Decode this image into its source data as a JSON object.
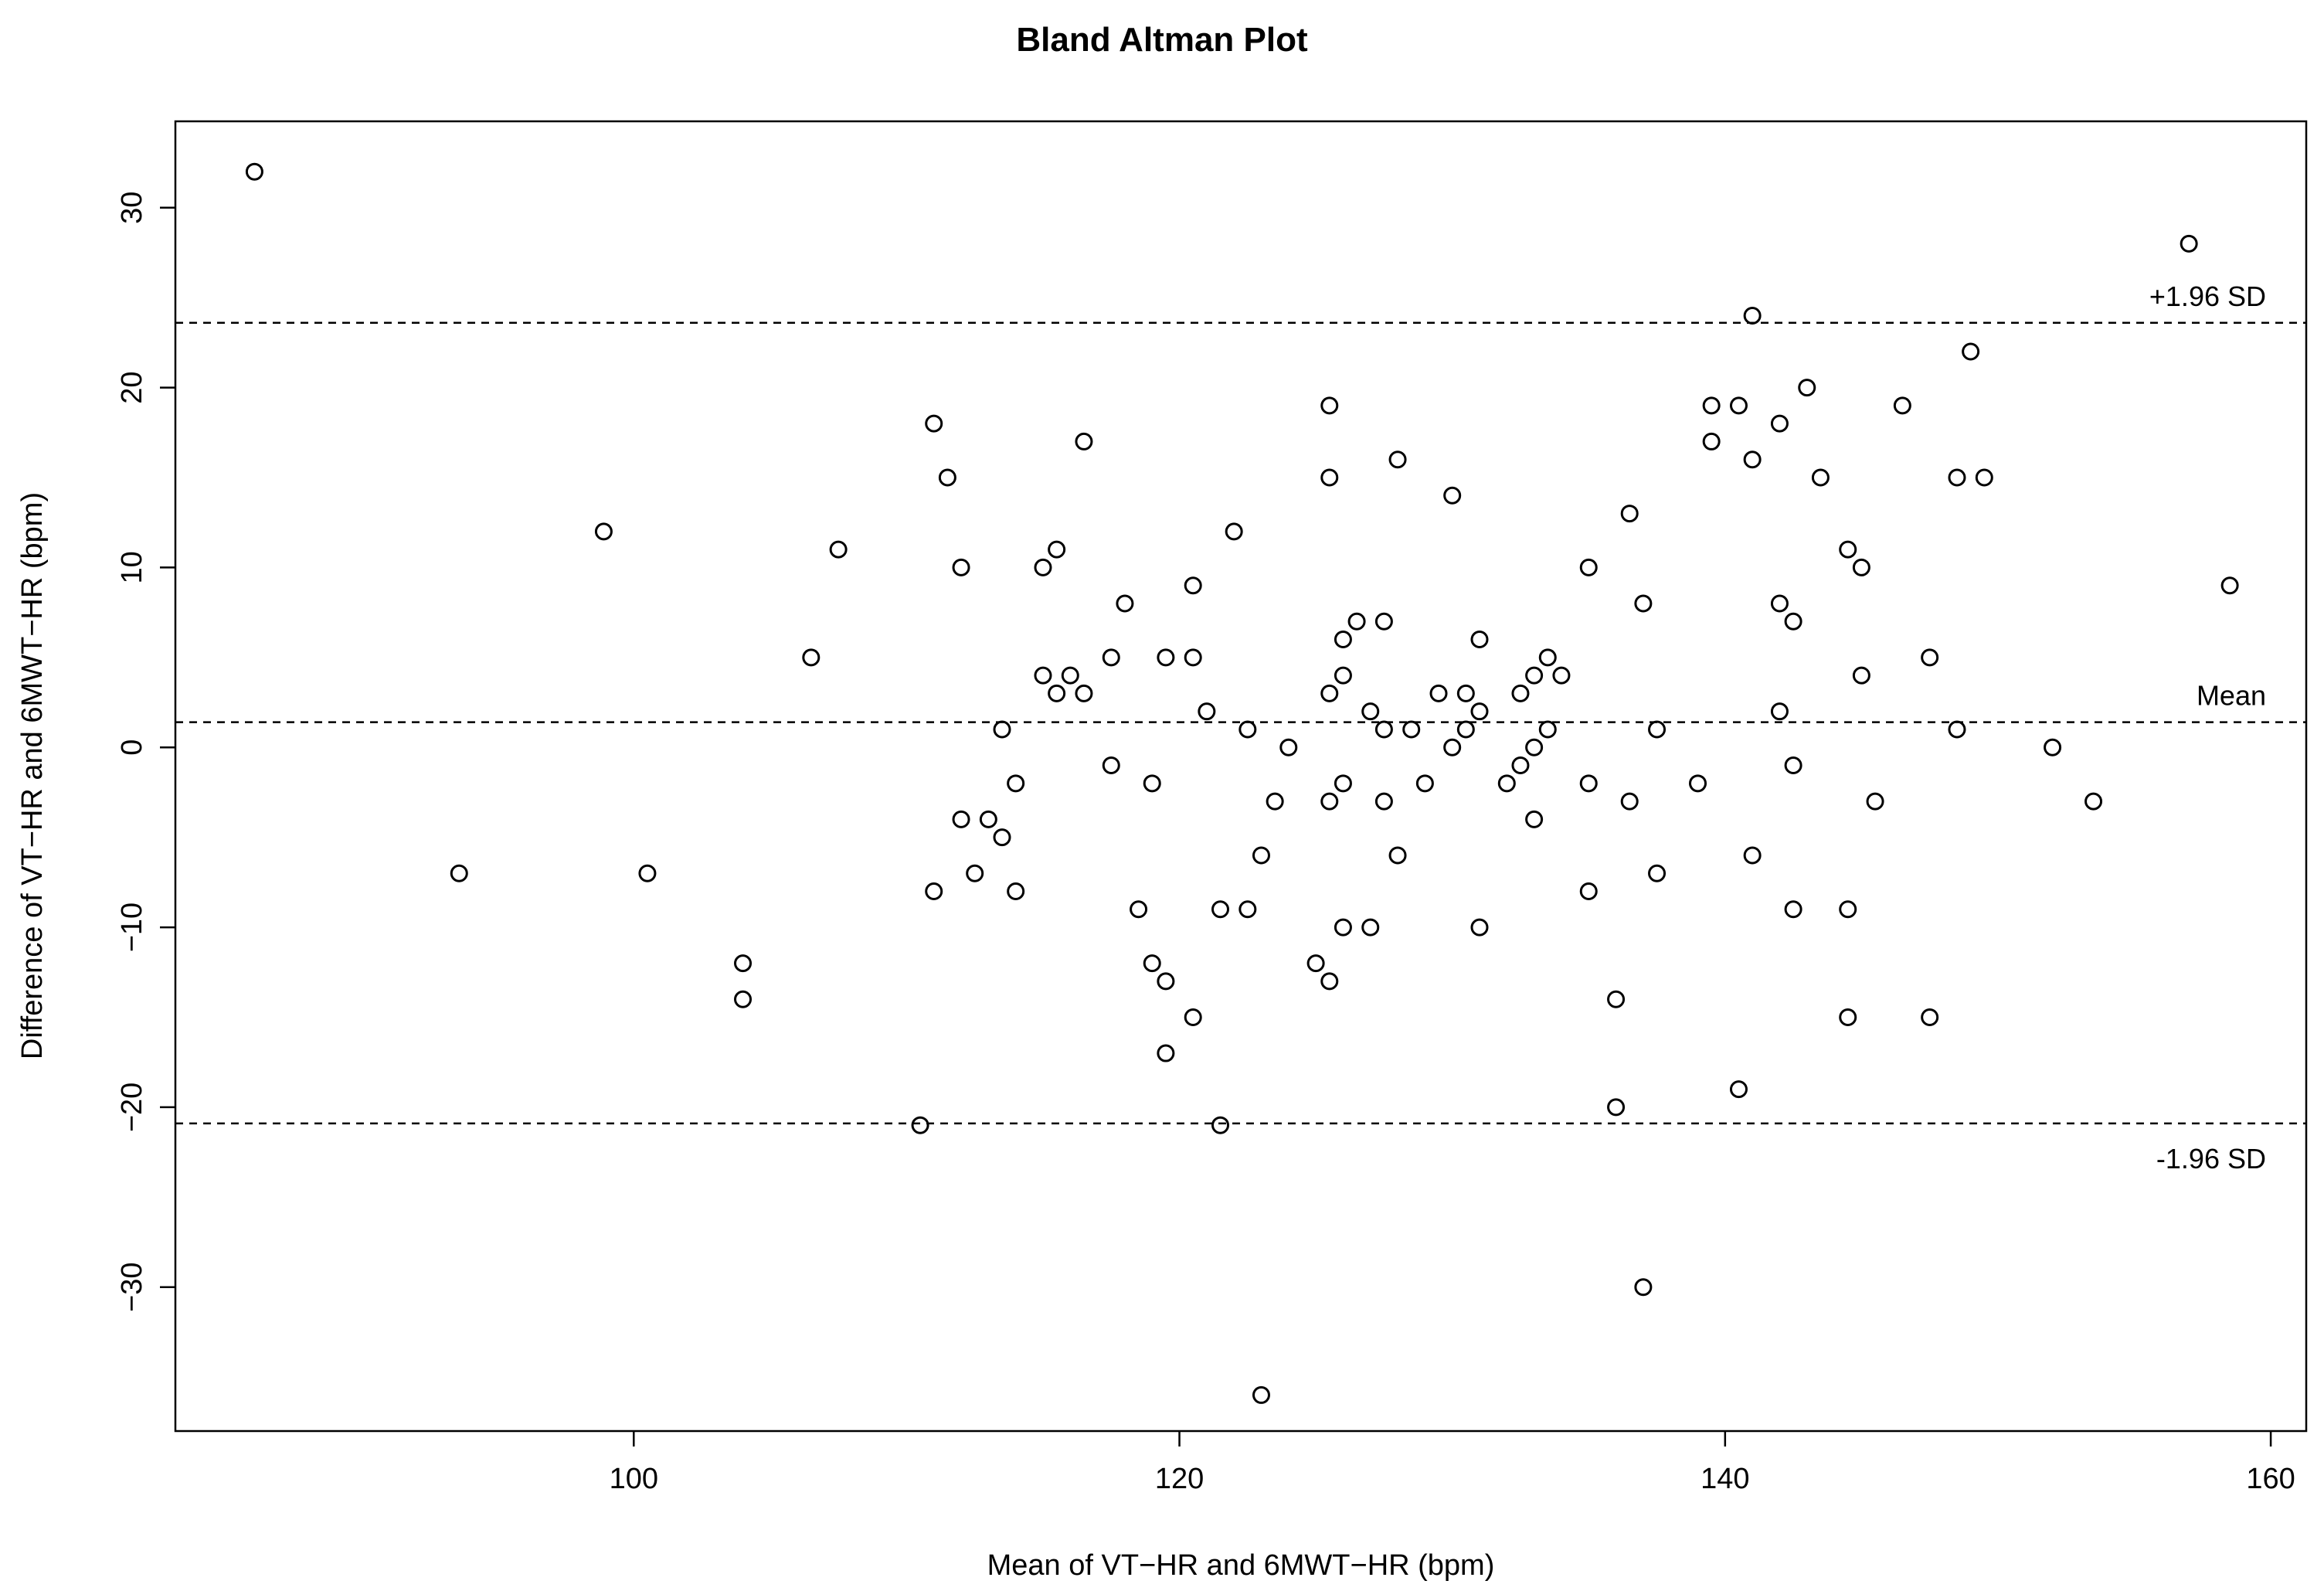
{
  "chart_data": {
    "type": "scatter",
    "title": "Bland Altman Plot",
    "xlabel": "Mean of VT−HR and 6MWT−HR (bpm)",
    "ylabel": "Difference of VT−HR and 6MWT−HR (bpm)",
    "xlim": [
      83.2,
      161.3
    ],
    "ylim": [
      -38.0,
      34.8
    ],
    "x_ticks": [
      100,
      120,
      140,
      160
    ],
    "x_tick_labels": [
      "100",
      "120",
      "140",
      "160"
    ],
    "y_ticks": [
      -30,
      -20,
      -10,
      0,
      10,
      20,
      30
    ],
    "y_tick_labels": [
      "−30",
      "−20",
      "−10",
      "0",
      "10",
      "20",
      "30"
    ],
    "grid": false,
    "legend": "none",
    "point_style": "open-circle",
    "reference_lines": [
      {
        "label": "+1.96 SD",
        "y": 23.6
      },
      {
        "label": "Mean",
        "y": 1.4
      },
      {
        "label": "-1.96 SD",
        "y": -20.9
      }
    ],
    "x": [
      86.1,
      93.6,
      98.9,
      100.5,
      104.0,
      104.0,
      106.5,
      107.5,
      110.5,
      111.0,
      111.0,
      111.5,
      112.0,
      112.0,
      112.5,
      113.0,
      113.5,
      113.5,
      114.0,
      114.0,
      115.0,
      115.0,
      115.5,
      115.5,
      116.0,
      116.5,
      116.5,
      117.5,
      117.5,
      118.0,
      118.5,
      119.0,
      119.0,
      119.5,
      119.5,
      119.5,
      120.5,
      120.5,
      120.5,
      121.0,
      121.5,
      121.5,
      122.0,
      122.5,
      122.5,
      123.0,
      123.0,
      123.5,
      124.0,
      125.0,
      125.5,
      125.5,
      125.5,
      125.5,
      125.5,
      126.0,
      126.0,
      126.0,
      126.0,
      126.5,
      127.0,
      127.0,
      127.5,
      127.5,
      127.5,
      128.0,
      128.0,
      128.5,
      129.0,
      129.5,
      130.0,
      130.0,
      130.5,
      130.5,
      131.0,
      131.0,
      131.0,
      132.0,
      132.5,
      132.5,
      133.0,
      133.0,
      133.0,
      133.5,
      133.5,
      134.0,
      135.0,
      135.0,
      135.0,
      136.0,
      136.0,
      136.5,
      136.5,
      137.0,
      137.0,
      137.5,
      137.5,
      139.0,
      139.5,
      139.5,
      140.5,
      140.5,
      141.0,
      141.0,
      141.0,
      142.0,
      142.0,
      142.0,
      142.5,
      142.5,
      142.5,
      143.0,
      143.5,
      144.5,
      144.5,
      144.5,
      145.0,
      145.0,
      145.5,
      146.5,
      147.5,
      147.5,
      148.5,
      148.5,
      149.0,
      149.5,
      152.0,
      153.5,
      157.0,
      158.5
    ],
    "y": [
      32,
      -7,
      12,
      -7,
      -12,
      -14,
      5,
      11,
      -21,
      18,
      -8,
      15,
      10,
      -4,
      -7,
      -4,
      1,
      -5,
      -2,
      -8,
      10,
      4,
      11,
      3,
      4,
      17,
      3,
      5,
      -1,
      8,
      -9,
      -2,
      -12,
      5,
      -13,
      -17,
      9,
      5,
      -15,
      2,
      -9,
      -21,
      12,
      1,
      -9,
      -6,
      -36,
      -3,
      0,
      -12,
      19,
      15,
      3,
      -3,
      -13,
      6,
      4,
      -2,
      -10,
      7,
      2,
      -10,
      7,
      1,
      -3,
      16,
      -6,
      1,
      -2,
      3,
      14,
      0,
      3,
      1,
      6,
      2,
      -10,
      -2,
      3,
      -1,
      4,
      0,
      -4,
      5,
      1,
      4,
      10,
      -2,
      -8,
      -14,
      -20,
      13,
      -3,
      8,
      -30,
      1,
      -7,
      -2,
      19,
      17,
      19,
      -19,
      24,
      16,
      -6,
      18,
      8,
      2,
      7,
      -1,
      -9,
      20,
      15,
      11,
      -9,
      -15,
      10,
      4,
      -3,
      19,
      5,
      -15,
      15,
      1,
      22,
      15,
      0,
      -3,
      28,
      9
    ]
  }
}
